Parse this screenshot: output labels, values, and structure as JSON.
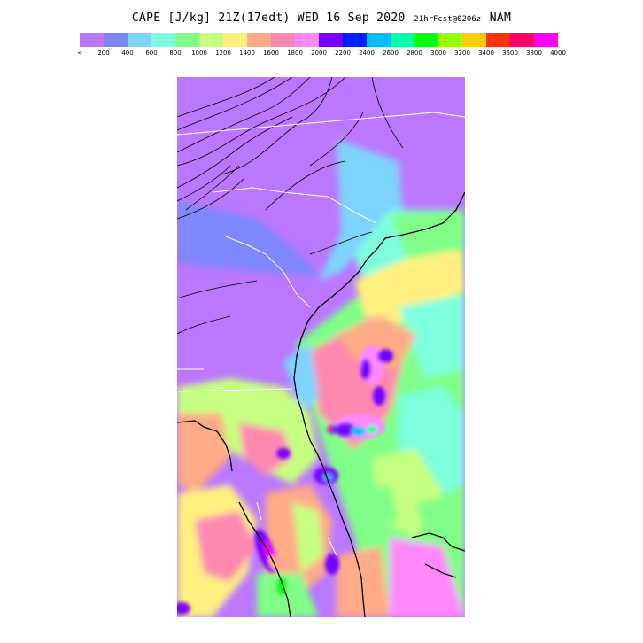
{
  "title": {
    "main": "CAPE [J/kg] 21Z(17edt) WED 16 Sep 2020",
    "forecast": "21hrFcst@0206z",
    "model": "NAM"
  },
  "colorbar": {
    "colors": [
      "#bb77ff",
      "#7f88ff",
      "#7fd3ff",
      "#7fffdd",
      "#7fff88",
      "#c6ff7f",
      "#fff07f",
      "#ffaa88",
      "#ff88b0",
      "#ff88ff",
      "#7700ff",
      "#0022ff",
      "#00bbff",
      "#00ffaa",
      "#00ff11",
      "#99ff00",
      "#ffcc00",
      "#ff3300",
      "#ff0066",
      "#ff00ff"
    ],
    "ticks": [
      "<",
      "200",
      "400",
      "600",
      "800",
      "1000",
      "1200",
      "1400",
      "1600",
      "1800",
      "2000",
      "2200",
      "2400",
      "2600",
      "2800",
      "3000",
      "3200",
      "3400",
      "3600",
      "3800",
      "4000"
    ]
  },
  "map": {
    "region": "Southeastern United States"
  }
}
